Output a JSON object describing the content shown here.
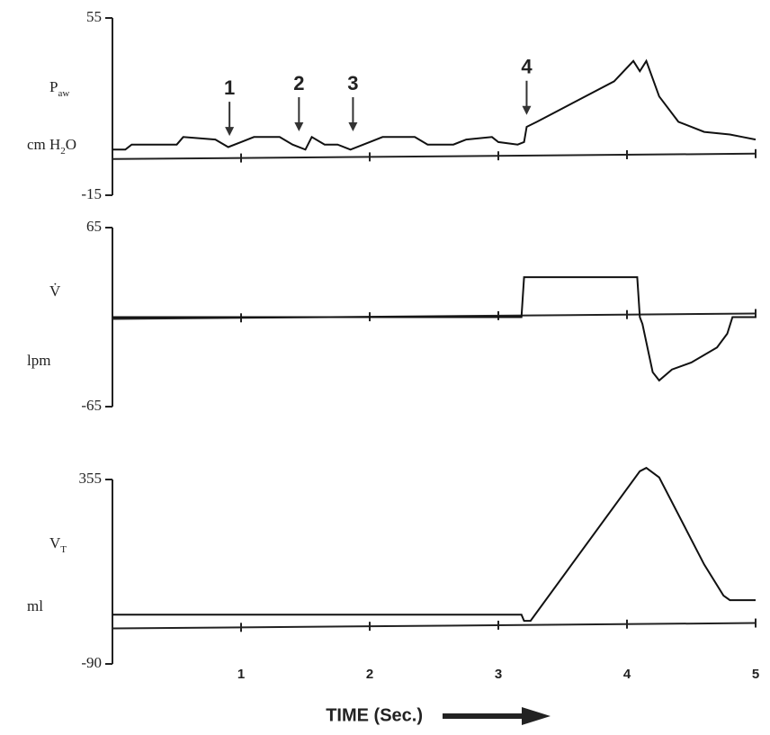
{
  "chart_data": [
    {
      "type": "line",
      "ylabel": [
        {
          "text": "P"
        },
        {
          "text": "aw",
          "sub": true
        }
      ],
      "unit": [
        {
          "text": "cm H"
        },
        {
          "text": "2",
          "sub": true
        },
        {
          "text": "O"
        }
      ],
      "xlim": [
        0,
        5
      ],
      "ylim": [
        -15,
        55
      ],
      "yticks": [
        55,
        -15
      ],
      "series": [
        {
          "color": "#111111",
          "x": [
            0,
            0.1,
            0.15,
            0.5,
            0.55,
            0.8,
            0.9,
            1.0,
            1.1,
            1.3,
            1.4,
            1.5,
            1.55,
            1.65,
            1.75,
            1.85,
            2.0,
            2.1,
            2.35,
            2.45,
            2.65,
            2.75,
            2.95,
            3.0,
            3.15,
            3.2,
            3.22,
            3.3,
            3.6,
            3.9,
            4.05,
            4.1,
            4.15,
            4.25,
            4.4,
            4.6,
            4.8,
            4.9,
            5.0
          ],
          "values": [
            3,
            3,
            5,
            5,
            8,
            7,
            4,
            6,
            8,
            8,
            5,
            3,
            8,
            5,
            5,
            3,
            6,
            8,
            8,
            5,
            5,
            7,
            8,
            6,
            5,
            6,
            12,
            14,
            22,
            30,
            38,
            34,
            38,
            24,
            14,
            10,
            9,
            8,
            7
          ]
        }
      ],
      "annotations": [
        {
          "text": "1",
          "x": 0.91,
          "y": 7.7
        },
        {
          "text": "2",
          "x": 1.45,
          "y": 9.5
        },
        {
          "text": "3",
          "x": 1.87,
          "y": 9.5
        },
        {
          "text": "4",
          "x": 3.22,
          "y": 16
        }
      ]
    },
    {
      "type": "line",
      "ylabel": [
        {
          "text": "V̇"
        }
      ],
      "unit": [
        {
          "text": "lpm"
        }
      ],
      "xlim": [
        0,
        5
      ],
      "ylim": [
        -65,
        65
      ],
      "yticks": [
        65,
        -65
      ],
      "series": [
        {
          "color": "#111111",
          "x": [
            0,
            3.18,
            3.2,
            3.5,
            4.08,
            4.1,
            4.12,
            4.2,
            4.25,
            4.35,
            4.5,
            4.7,
            4.78,
            4.82,
            5.0
          ],
          "values": [
            0,
            0,
            29,
            29,
            29,
            0,
            -5,
            -40,
            -46,
            -38,
            -33,
            -22,
            -12,
            0,
            0
          ]
        }
      ]
    },
    {
      "type": "line",
      "ylabel": [
        {
          "text": "V"
        },
        {
          "text": "T",
          "sub": true
        }
      ],
      "unit": [
        {
          "text": "ml"
        }
      ],
      "xlabel": "TIME (Sec.)",
      "xlim": [
        0,
        5
      ],
      "ylim": [
        -90,
        355
      ],
      "yticks": [
        355,
        -90
      ],
      "xticks": [
        1,
        2,
        3,
        4,
        5
      ],
      "series": [
        {
          "color": "#111111",
          "x": [
            0,
            3.18,
            3.2,
            3.25,
            4.1,
            4.15,
            4.25,
            4.6,
            4.75,
            4.8,
            5.0
          ],
          "values": [
            29,
            29,
            14,
            14,
            375,
            383,
            360,
            150,
            75,
            64,
            64
          ]
        }
      ]
    }
  ]
}
